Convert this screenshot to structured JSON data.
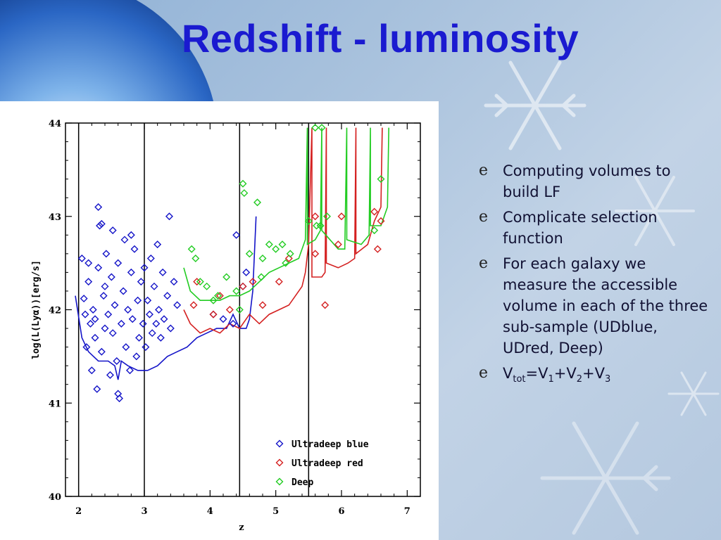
{
  "slide": {
    "title": "Redshift - luminosity",
    "bullet_glyph": "e",
    "bullets": [
      "Computing volumes to build LF",
      "Complicate selection function",
      "For each galaxy we measure the accessible volume in each of the three sub-sample (UDblue, UDred, Deep)"
    ],
    "formula": {
      "V": "V",
      "tot": "tot",
      "eq": "=V",
      "s1": "1",
      "p1": "+V",
      "s2": "2",
      "p2": "+V",
      "s3": "3"
    }
  },
  "chart_data": {
    "type": "scatter",
    "xlabel": "z",
    "ylabel": "log(L(Lyα))[erg/s]",
    "xlim": [
      1.8,
      7.2
    ],
    "ylim": [
      40,
      44
    ],
    "xticks": [
      "2",
      "3",
      "4",
      "5",
      "6",
      "7"
    ],
    "yticks": [
      "40",
      "41",
      "42",
      "43",
      "44"
    ],
    "grid": false,
    "legend_position": "bottom-right",
    "vlines": [
      2.0,
      3.0,
      4.45,
      5.5
    ],
    "series": [
      {
        "name": "Ultradeep blue",
        "color": "#1414c8",
        "marker": "diamond",
        "points": [
          [
            2.05,
            42.55
          ],
          [
            2.08,
            42.12
          ],
          [
            2.1,
            41.95
          ],
          [
            2.12,
            41.6
          ],
          [
            2.15,
            42.3
          ],
          [
            2.18,
            41.85
          ],
          [
            2.2,
            41.35
          ],
          [
            2.22,
            42.0
          ],
          [
            2.25,
            41.7
          ],
          [
            2.28,
            41.15
          ],
          [
            2.3,
            42.45
          ],
          [
            2.32,
            42.9
          ],
          [
            2.35,
            41.55
          ],
          [
            2.38,
            42.15
          ],
          [
            2.4,
            41.8
          ],
          [
            2.42,
            42.6
          ],
          [
            2.45,
            41.95
          ],
          [
            2.48,
            41.3
          ],
          [
            2.5,
            42.35
          ],
          [
            2.52,
            41.75
          ],
          [
            2.55,
            42.05
          ],
          [
            2.58,
            41.45
          ],
          [
            2.6,
            42.5
          ],
          [
            2.62,
            41.05
          ],
          [
            2.65,
            41.85
          ],
          [
            2.68,
            42.2
          ],
          [
            2.7,
            42.75
          ],
          [
            2.72,
            41.6
          ],
          [
            2.75,
            42.0
          ],
          [
            2.78,
            41.35
          ],
          [
            2.8,
            42.4
          ],
          [
            2.82,
            41.9
          ],
          [
            2.85,
            42.65
          ],
          [
            2.88,
            41.5
          ],
          [
            2.9,
            42.1
          ],
          [
            2.92,
            41.7
          ],
          [
            2.95,
            42.3
          ],
          [
            2.98,
            41.85
          ],
          [
            3.0,
            42.45
          ],
          [
            3.02,
            41.6
          ],
          [
            3.05,
            42.1
          ],
          [
            3.08,
            41.95
          ],
          [
            3.1,
            42.55
          ],
          [
            3.12,
            41.75
          ],
          [
            3.15,
            42.25
          ],
          [
            3.18,
            41.85
          ],
          [
            3.2,
            42.7
          ],
          [
            3.22,
            42.0
          ],
          [
            3.25,
            41.7
          ],
          [
            3.28,
            42.4
          ],
          [
            3.3,
            41.9
          ],
          [
            3.35,
            42.15
          ],
          [
            3.4,
            41.8
          ],
          [
            3.45,
            42.3
          ],
          [
            3.5,
            42.05
          ],
          [
            2.3,
            43.1
          ],
          [
            2.35,
            42.92
          ],
          [
            2.52,
            42.85
          ],
          [
            2.8,
            42.8
          ],
          [
            3.38,
            43.0
          ],
          [
            2.15,
            42.5
          ],
          [
            2.6,
            41.1
          ],
          [
            2.25,
            41.9
          ],
          [
            2.4,
            42.25
          ],
          [
            4.4,
            42.8
          ],
          [
            4.5,
            42.25
          ],
          [
            4.55,
            42.4
          ],
          [
            4.05,
            41.95
          ],
          [
            4.2,
            41.9
          ],
          [
            4.35,
            41.85
          ]
        ]
      },
      {
        "name": "Ultradeep red",
        "color": "#d42020",
        "marker": "diamond",
        "points": [
          [
            3.75,
            42.05
          ],
          [
            3.8,
            42.3
          ],
          [
            4.05,
            41.95
          ],
          [
            4.15,
            42.15
          ],
          [
            4.3,
            42.0
          ],
          [
            4.5,
            42.25
          ],
          [
            4.65,
            42.3
          ],
          [
            4.8,
            42.05
          ],
          [
            5.05,
            42.3
          ],
          [
            5.2,
            42.55
          ],
          [
            5.6,
            42.6
          ],
          [
            5.75,
            42.05
          ],
          [
            5.95,
            42.7
          ],
          [
            6.0,
            43.0
          ],
          [
            6.5,
            43.05
          ],
          [
            6.55,
            42.65
          ],
          [
            6.6,
            42.95
          ],
          [
            5.6,
            43.0
          ]
        ]
      },
      {
        "name": "Deep",
        "color": "#22cc22",
        "marker": "diamond",
        "points": [
          [
            3.72,
            42.65
          ],
          [
            3.78,
            42.55
          ],
          [
            3.85,
            42.3
          ],
          [
            3.95,
            42.25
          ],
          [
            4.05,
            42.1
          ],
          [
            4.12,
            42.15
          ],
          [
            4.25,
            42.35
          ],
          [
            4.4,
            42.2
          ],
          [
            4.45,
            42.0
          ],
          [
            4.5,
            43.35
          ],
          [
            4.52,
            43.25
          ],
          [
            4.6,
            42.6
          ],
          [
            4.72,
            43.15
          ],
          [
            4.8,
            42.55
          ],
          [
            4.9,
            42.7
          ],
          [
            5.0,
            42.65
          ],
          [
            5.1,
            42.7
          ],
          [
            5.15,
            42.5
          ],
          [
            5.22,
            42.6
          ],
          [
            5.5,
            42.95
          ],
          [
            5.6,
            43.95
          ],
          [
            5.62,
            42.9
          ],
          [
            5.68,
            42.9
          ],
          [
            5.78,
            43.0
          ],
          [
            6.5,
            42.85
          ],
          [
            6.6,
            43.4
          ],
          [
            5.7,
            43.95
          ],
          [
            4.78,
            42.35
          ]
        ]
      }
    ],
    "limit_curves": [
      {
        "name": "Ultradeep blue",
        "color": "#1414c8",
        "points": [
          [
            1.95,
            42.15
          ],
          [
            2.05,
            41.7
          ],
          [
            2.15,
            41.55
          ],
          [
            2.3,
            41.45
          ],
          [
            2.45,
            41.45
          ],
          [
            2.55,
            41.4
          ],
          [
            2.6,
            41.25
          ],
          [
            2.65,
            41.45
          ],
          [
            2.75,
            41.4
          ],
          [
            2.9,
            41.35
          ],
          [
            3.05,
            41.35
          ],
          [
            3.2,
            41.4
          ],
          [
            3.35,
            41.5
          ],
          [
            3.5,
            41.55
          ],
          [
            3.65,
            41.6
          ],
          [
            3.8,
            41.7
          ],
          [
            3.95,
            41.75
          ],
          [
            4.1,
            41.8
          ],
          [
            4.25,
            41.8
          ],
          [
            4.35,
            41.95
          ],
          [
            4.45,
            41.8
          ],
          [
            4.55,
            41.8
          ],
          [
            4.6,
            41.9
          ],
          [
            4.65,
            42.2
          ],
          [
            4.7,
            43.0
          ]
        ]
      },
      {
        "name": "Ultradeep red",
        "color": "#d42020",
        "points": [
          [
            3.6,
            42.0
          ],
          [
            3.7,
            41.85
          ],
          [
            3.85,
            41.75
          ],
          [
            4.0,
            41.8
          ],
          [
            4.15,
            41.75
          ],
          [
            4.3,
            41.85
          ],
          [
            4.45,
            41.8
          ],
          [
            4.6,
            41.95
          ],
          [
            4.75,
            41.85
          ],
          [
            4.9,
            41.95
          ],
          [
            5.05,
            42.0
          ],
          [
            5.2,
            42.05
          ],
          [
            5.3,
            42.15
          ],
          [
            5.4,
            42.25
          ],
          [
            5.45,
            42.4
          ],
          [
            5.5,
            42.7
          ],
          [
            5.52,
            43.2
          ],
          [
            5.55,
            43.95
          ],
          [
            5.55,
            42.35
          ],
          [
            5.7,
            42.35
          ],
          [
            5.75,
            42.4
          ],
          [
            5.77,
            43.95
          ],
          [
            5.77,
            42.5
          ],
          [
            5.95,
            42.45
          ],
          [
            6.1,
            42.5
          ],
          [
            6.2,
            42.55
          ],
          [
            6.22,
            43.95
          ],
          [
            6.22,
            42.6
          ],
          [
            6.4,
            42.7
          ],
          [
            6.5,
            42.95
          ],
          [
            6.6,
            43.1
          ],
          [
            6.62,
            43.95
          ]
        ]
      },
      {
        "name": "Deep",
        "color": "#22cc22",
        "points": [
          [
            3.6,
            42.45
          ],
          [
            3.7,
            42.2
          ],
          [
            3.85,
            42.1
          ],
          [
            4.0,
            42.1
          ],
          [
            4.15,
            42.1
          ],
          [
            4.3,
            42.15
          ],
          [
            4.45,
            42.15
          ],
          [
            4.6,
            42.2
          ],
          [
            4.75,
            42.3
          ],
          [
            4.9,
            42.4
          ],
          [
            5.05,
            42.45
          ],
          [
            5.2,
            42.5
          ],
          [
            5.35,
            42.55
          ],
          [
            5.45,
            42.75
          ],
          [
            5.48,
            43.95
          ],
          [
            5.48,
            42.7
          ],
          [
            5.6,
            42.75
          ],
          [
            5.68,
            42.85
          ],
          [
            5.7,
            43.95
          ],
          [
            5.7,
            42.85
          ],
          [
            5.95,
            42.65
          ],
          [
            6.05,
            42.65
          ],
          [
            6.08,
            43.95
          ],
          [
            6.08,
            42.75
          ],
          [
            6.3,
            42.7
          ],
          [
            6.42,
            42.8
          ],
          [
            6.44,
            43.95
          ],
          [
            6.44,
            42.9
          ],
          [
            6.6,
            42.9
          ],
          [
            6.7,
            43.1
          ],
          [
            6.72,
            43.95
          ]
        ]
      }
    ]
  }
}
